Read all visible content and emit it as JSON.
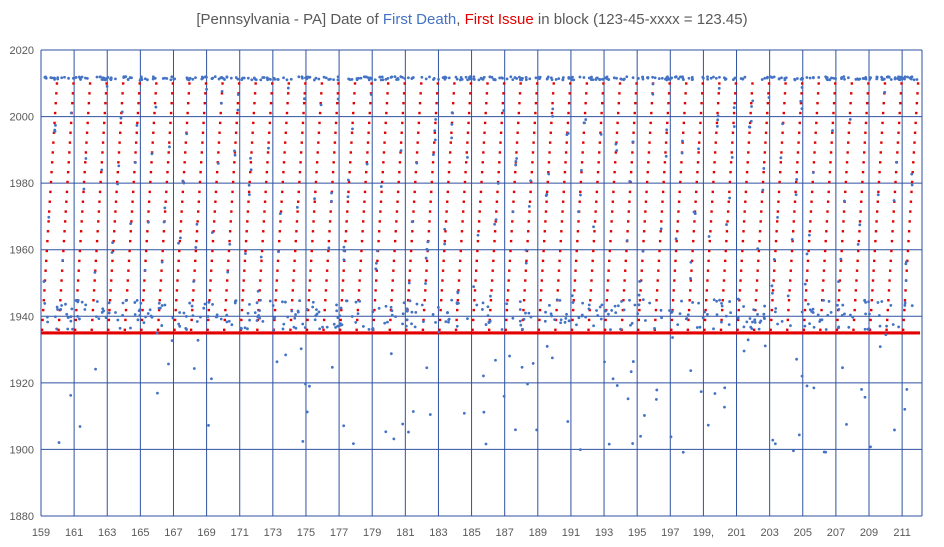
{
  "chart_data": {
    "type": "scatter",
    "title": {
      "prefix": "[Pennsylvania - PA] Date of ",
      "series1": "First Death",
      "sep": ", ",
      "series2": "First Issue",
      "suffix": " in block (123-45-xxxx = 123.45)"
    },
    "colors": {
      "first_death": "#4472C4",
      "first_issue": "#E30000",
      "grid": "#2F52A0",
      "tick_text": "#595959"
    },
    "xlim": [
      159,
      212.2
    ],
    "ylim": [
      1880,
      2020
    ],
    "x_ticks": [
      159,
      161,
      163,
      165,
      167,
      169,
      171,
      173,
      175,
      177,
      179,
      181,
      183,
      185,
      187,
      189,
      191,
      193,
      195,
      197,
      199,
      201,
      203,
      205,
      207,
      209,
      211
    ],
    "x_tick_labels": [
      "159",
      "161",
      "163",
      "165",
      "167",
      "169",
      "171",
      "173",
      "175",
      "177",
      "179",
      "181",
      "183",
      "185",
      "187",
      "189",
      "191",
      "193",
      "195",
      "197",
      "199,",
      "201",
      "203",
      "205",
      "207",
      "209",
      "211"
    ],
    "y_ticks": [
      1880,
      1900,
      1920,
      1940,
      1960,
      1980,
      2000,
      2020
    ],
    "y_tick_labels": [
      "1880",
      "1900",
      "1920",
      "1940",
      "1960",
      "1980",
      "2000",
      "2020"
    ],
    "grid": true,
    "legend": "none",
    "series": [
      {
        "name": "First Death",
        "pattern": {
          "points_per_unit": 20,
          "top_band": [
            2011,
            2012
          ],
          "cluster_band": [
            1936,
            1945
          ],
          "spread_band": [
            1936,
            2010
          ],
          "outlier_band": [
            1899,
            1934
          ]
        }
      },
      {
        "name": "First Issue",
        "pattern": {
          "baseline": 1935,
          "ramp_start": 1936,
          "ramp_end": 2010,
          "ramp_width": 0.9
        }
      }
    ]
  }
}
